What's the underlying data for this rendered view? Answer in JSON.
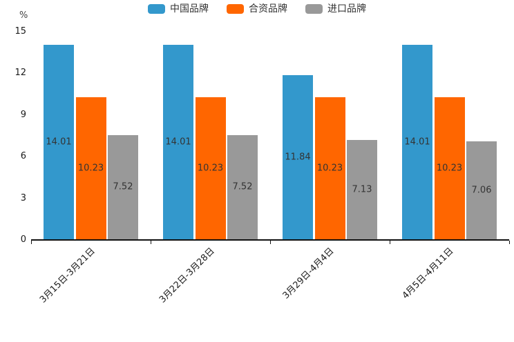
{
  "chart_data": {
    "type": "bar",
    "title": "",
    "unit_label": "%",
    "categories": [
      "3月15日-3月21日",
      "3月22日-3月28日",
      "3月29日-4月4日",
      "4月5日-4月11日"
    ],
    "series": [
      {
        "name": "中国品牌",
        "color": "#3398cc",
        "values": [
          14.01,
          14.01,
          11.84,
          14.01
        ]
      },
      {
        "name": "合资品牌",
        "color": "#ff6600",
        "values": [
          10.23,
          10.23,
          10.23,
          10.23
        ]
      },
      {
        "name": "进口品牌",
        "color": "#999999",
        "values": [
          7.52,
          7.52,
          7.13,
          7.06
        ]
      }
    ],
    "data_labels": [
      [
        "14.01",
        "10.23",
        "7.52"
      ],
      [
        "14.01",
        "10.23",
        "7.52"
      ],
      [
        "11.84",
        "10.23",
        "7.13"
      ],
      [
        "14.01",
        "10.23",
        "7.06"
      ]
    ],
    "ylim": [
      0,
      15
    ],
    "yticks": [
      "0",
      "3",
      "6",
      "9",
      "12",
      "15"
    ],
    "grid": false,
    "legend_position": "top-center",
    "x_label_rotation": 45,
    "colors": {
      "axis_line": "#111111",
      "tick_text": "#1a1a1a",
      "value_label_text": "#333333",
      "background": "#ffffff"
    }
  }
}
